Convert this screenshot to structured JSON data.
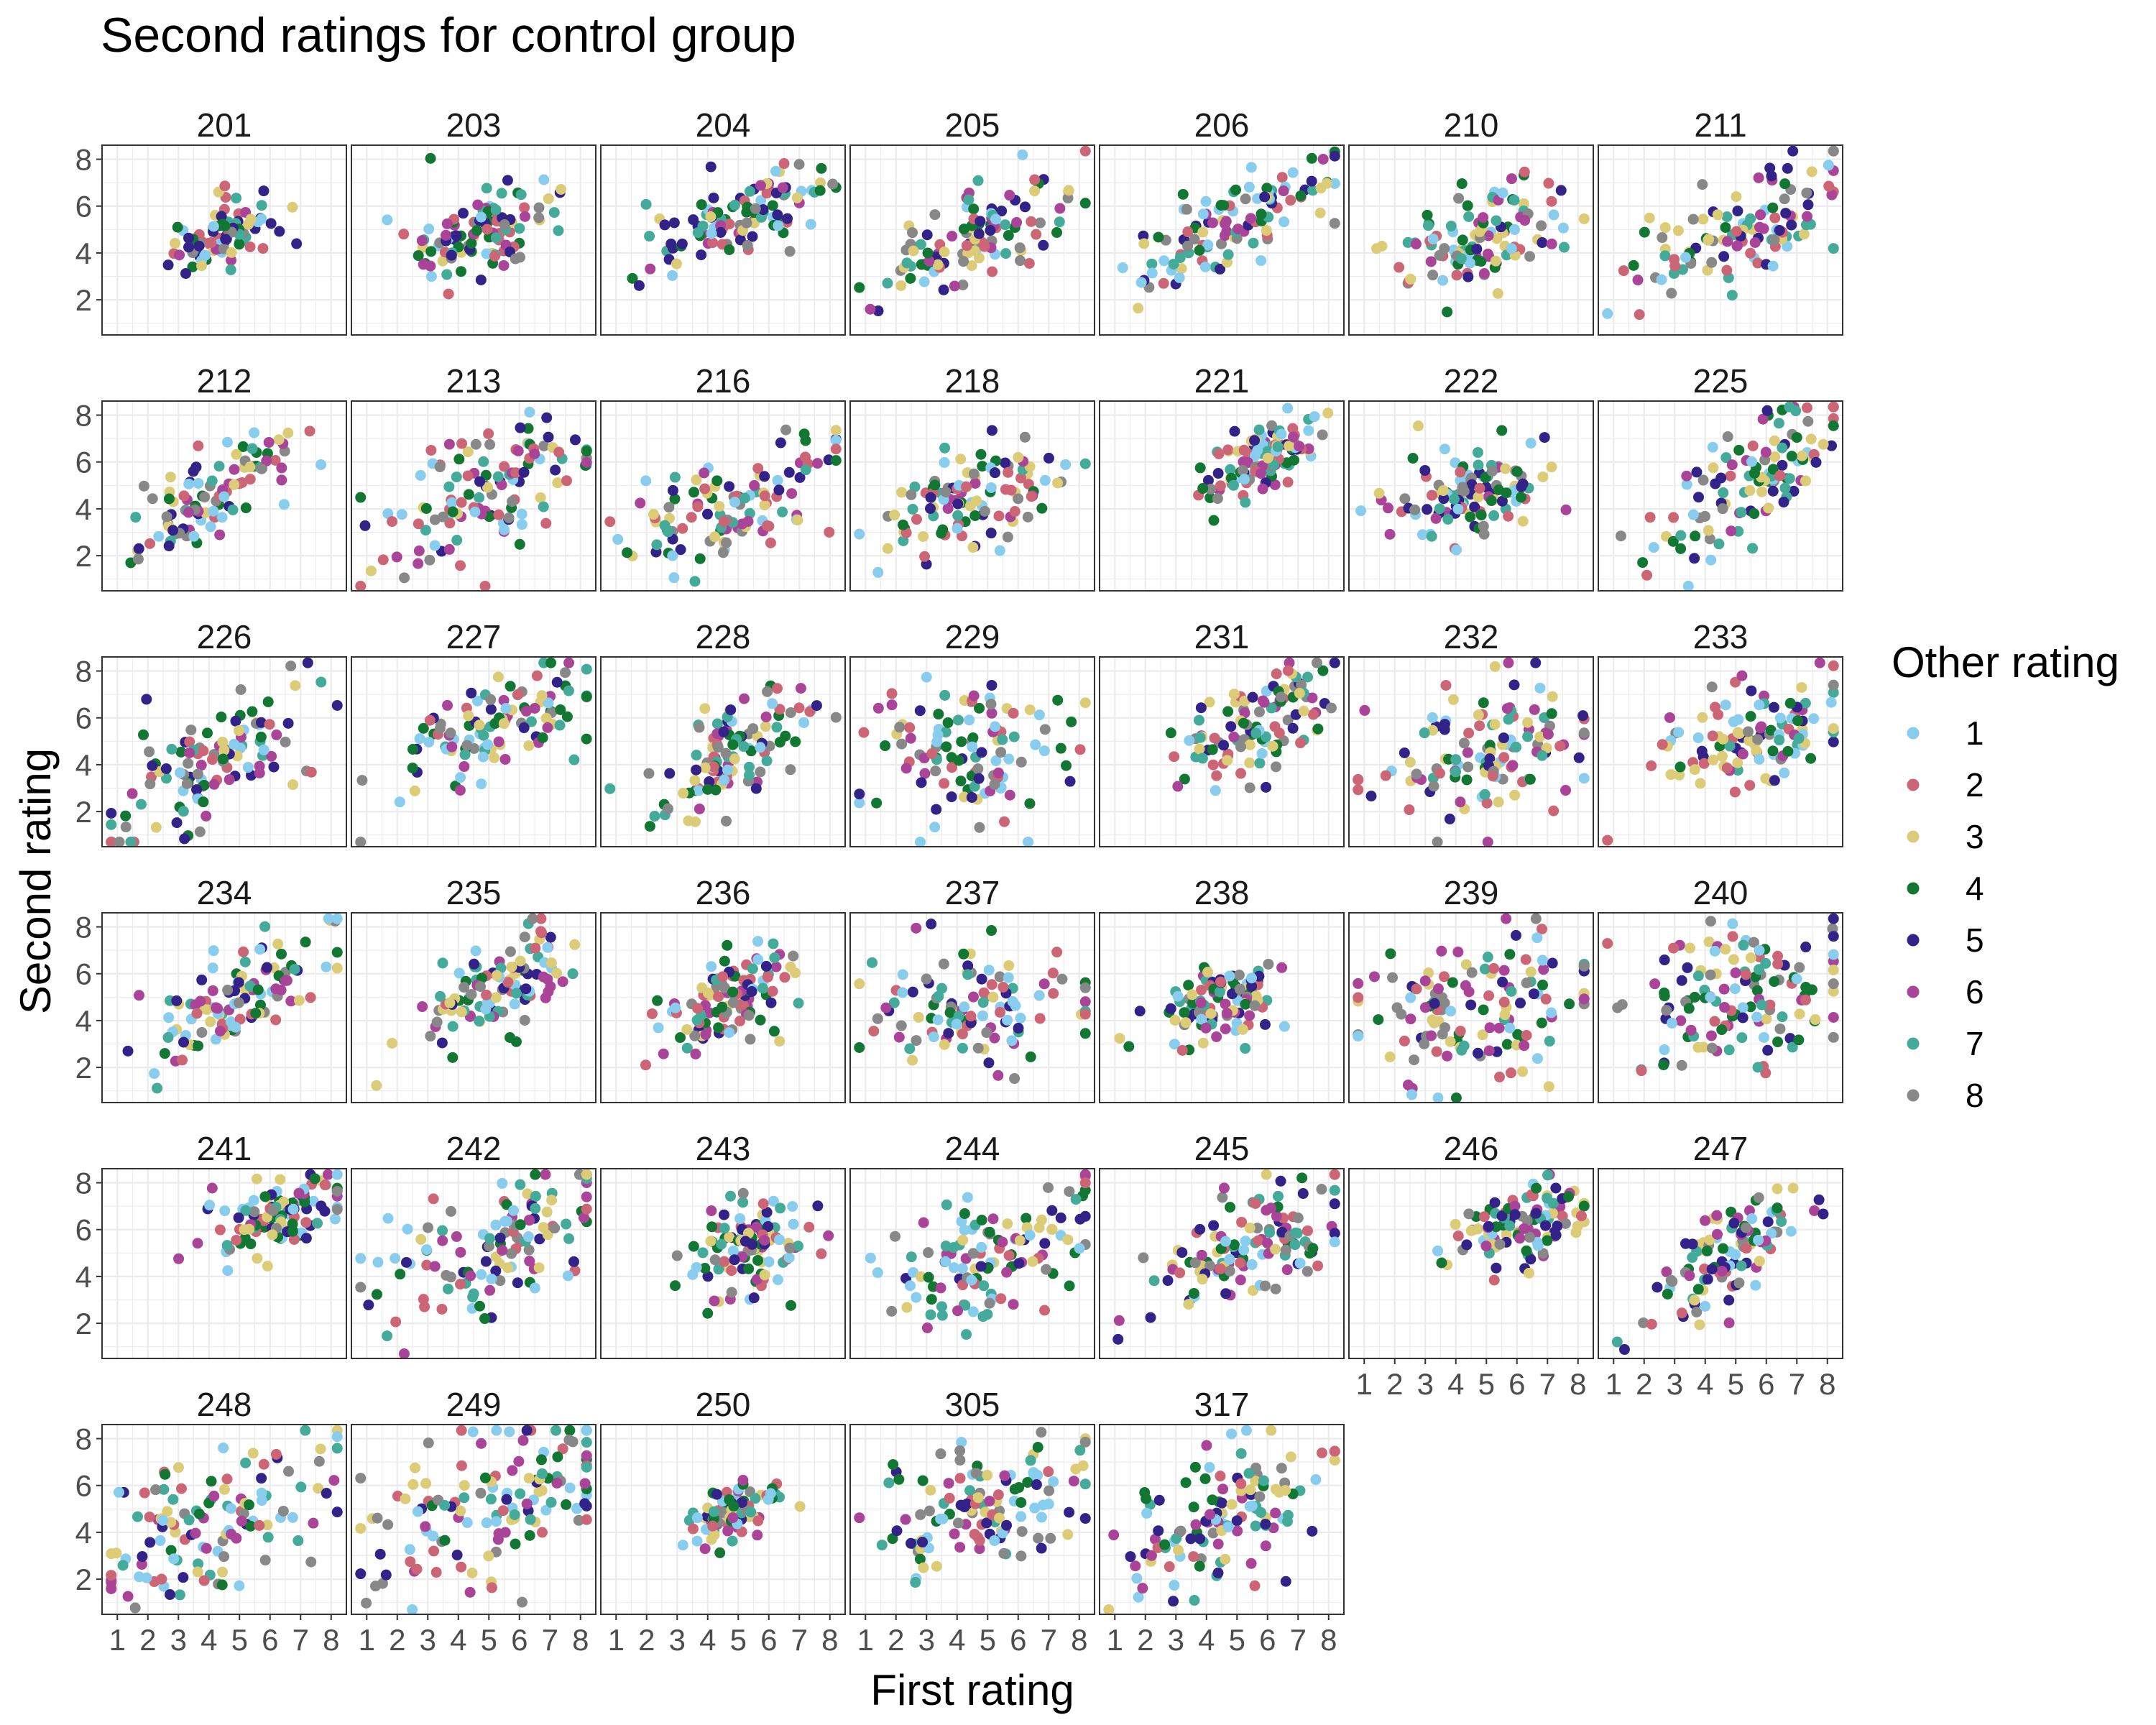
{
  "chart_data": {
    "type": "scatter",
    "title": "Second ratings for control group",
    "xlabel": "First rating",
    "ylabel": "Second rating",
    "xlim": [
      0.5,
      8.5
    ],
    "ylim": [
      0.5,
      8.6
    ],
    "x_ticks": [
      1,
      2,
      3,
      4,
      5,
      6,
      7,
      8
    ],
    "y_ticks": [
      2,
      4,
      6,
      8
    ],
    "grid": true,
    "facet_layout": {
      "columns": 7,
      "rows": 6
    },
    "facets": [
      "201",
      "203",
      "204",
      "205",
      "206",
      "210",
      "211",
      "212",
      "213",
      "216",
      "218",
      "221",
      "222",
      "225",
      "226",
      "227",
      "228",
      "229",
      "231",
      "232",
      "233",
      "234",
      "235",
      "236",
      "237",
      "238",
      "239",
      "240",
      "241",
      "242",
      "243",
      "244",
      "245",
      "246",
      "247",
      "248",
      "249",
      "250",
      "305",
      "317"
    ],
    "legend": {
      "title": "Other rating",
      "position": "right",
      "entries": [
        {
          "label": "1",
          "color": "#88ccee"
        },
        {
          "label": "2",
          "color": "#cc6677"
        },
        {
          "label": "3",
          "color": "#ddcc77"
        },
        {
          "label": "4",
          "color": "#117733"
        },
        {
          "label": "5",
          "color": "#332288"
        },
        {
          "label": "6",
          "color": "#aa4499"
        },
        {
          "label": "7",
          "color": "#44aa99"
        },
        {
          "label": "8",
          "color": "#888888"
        }
      ]
    },
    "facet_points": {
      "201": {
        "cx": 4.5,
        "cy": 4.6,
        "sx": 0.8,
        "sy": 0.9,
        "slope": 0.6,
        "n": 90
      },
      "203": {
        "cx": 4.6,
        "cy": 4.9,
        "sx": 1.2,
        "sy": 1.2,
        "slope": 0.4,
        "n": 110
      },
      "204": {
        "cx": 5.0,
        "cy": 5.5,
        "sx": 1.3,
        "sy": 1.1,
        "slope": 0.5,
        "n": 110
      },
      "205": {
        "cx": 4.6,
        "cy": 4.6,
        "sx": 1.6,
        "sy": 1.2,
        "slope": 0.6,
        "n": 110
      },
      "206": {
        "cx": 5.0,
        "cy": 5.2,
        "sx": 1.8,
        "sy": 1.2,
        "slope": 0.6,
        "n": 110
      },
      "210": {
        "cx": 4.8,
        "cy": 4.7,
        "sx": 1.6,
        "sy": 1.3,
        "slope": 0.4,
        "n": 110
      },
      "211": {
        "cx": 5.0,
        "cy": 4.9,
        "sx": 1.8,
        "sy": 1.5,
        "slope": 0.5,
        "n": 110
      },
      "212": {
        "cx": 4.0,
        "cy": 4.6,
        "sx": 1.4,
        "sy": 1.2,
        "slope": 0.8,
        "n": 100
      },
      "213": {
        "cx": 4.5,
        "cy": 4.6,
        "sx": 2.0,
        "sy": 1.6,
        "slope": 0.4,
        "n": 120
      },
      "216": {
        "cx": 4.5,
        "cy": 3.9,
        "sx": 1.9,
        "sy": 1.6,
        "slope": 0.5,
        "n": 110
      },
      "218": {
        "cx": 4.6,
        "cy": 4.5,
        "sx": 1.6,
        "sy": 1.4,
        "slope": 0.3,
        "n": 110
      },
      "221": {
        "cx": 6.0,
        "cy": 6.3,
        "sx": 1.0,
        "sy": 0.9,
        "slope": 0.6,
        "n": 110
      },
      "222": {
        "cx": 4.5,
        "cy": 4.6,
        "sx": 1.1,
        "sy": 1.3,
        "slope": 0.3,
        "n": 110
      },
      "225": {
        "cx": 5.5,
        "cy": 5.2,
        "sx": 1.6,
        "sy": 1.5,
        "slope": 0.8,
        "n": 110
      },
      "226": {
        "cx": 4.0,
        "cy": 4.2,
        "sx": 1.8,
        "sy": 1.6,
        "slope": 0.7,
        "n": 110
      },
      "227": {
        "cx": 5.2,
        "cy": 5.6,
        "sx": 1.6,
        "sy": 1.2,
        "slope": 0.5,
        "n": 110
      },
      "228": {
        "cx": 4.8,
        "cy": 4.6,
        "sx": 1.4,
        "sy": 1.4,
        "slope": 0.7,
        "n": 110
      },
      "229": {
        "cx": 4.5,
        "cy": 4.7,
        "sx": 1.8,
        "sy": 1.8,
        "slope": 0.1,
        "n": 110
      },
      "231": {
        "cx": 5.5,
        "cy": 5.6,
        "sx": 1.5,
        "sy": 1.3,
        "slope": 0.6,
        "n": 110
      },
      "232": {
        "cx": 4.6,
        "cy": 4.6,
        "sx": 1.8,
        "sy": 1.8,
        "slope": 0.3,
        "n": 120
      },
      "233": {
        "cx": 5.4,
        "cy": 5.0,
        "sx": 1.7,
        "sy": 1.3,
        "slope": 0.4,
        "n": 110
      },
      "234": {
        "cx": 4.8,
        "cy": 5.0,
        "sx": 1.5,
        "sy": 1.3,
        "slope": 0.6,
        "n": 110
      },
      "235": {
        "cx": 5.4,
        "cy": 5.6,
        "sx": 1.3,
        "sy": 1.3,
        "slope": 0.6,
        "n": 110
      },
      "236": {
        "cx": 4.6,
        "cy": 4.9,
        "sx": 1.1,
        "sy": 1.2,
        "slope": 0.4,
        "n": 110
      },
      "237": {
        "cx": 4.6,
        "cy": 4.7,
        "sx": 1.8,
        "sy": 1.8,
        "slope": 0.1,
        "n": 110
      },
      "238": {
        "cx": 4.5,
        "cy": 4.8,
        "sx": 1.0,
        "sy": 1.0,
        "slope": 0.3,
        "n": 110
      },
      "239": {
        "cx": 5.0,
        "cy": 4.8,
        "sx": 2.0,
        "sy": 2.0,
        "slope": 0.3,
        "n": 130
      },
      "240": {
        "cx": 5.0,
        "cy": 5.0,
        "sx": 2.0,
        "sy": 1.9,
        "slope": 0.2,
        "n": 130
      },
      "241": {
        "cx": 6.2,
        "cy": 6.6,
        "sx": 1.2,
        "sy": 1.0,
        "slope": 0.4,
        "n": 110
      },
      "242": {
        "cx": 5.2,
        "cy": 5.2,
        "sx": 2.0,
        "sy": 1.8,
        "slope": 0.5,
        "n": 120
      },
      "243": {
        "cx": 5.2,
        "cy": 5.3,
        "sx": 1.0,
        "sy": 1.3,
        "slope": 0.3,
        "n": 110
      },
      "244": {
        "cx": 5.2,
        "cy": 5.0,
        "sx": 1.8,
        "sy": 1.6,
        "slope": 0.6,
        "n": 120
      },
      "245": {
        "cx": 5.6,
        "cy": 5.5,
        "sx": 1.8,
        "sy": 1.5,
        "slope": 0.5,
        "n": 120
      },
      "246": {
        "cx": 6.3,
        "cy": 6.2,
        "sx": 1.1,
        "sy": 1.1,
        "slope": 0.3,
        "n": 110
      },
      "247": {
        "cx": 4.8,
        "cy": 5.0,
        "sx": 1.3,
        "sy": 1.5,
        "slope": 0.8,
        "n": 110
      },
      "248": {
        "cx": 4.2,
        "cy": 4.2,
        "sx": 2.0,
        "sy": 1.9,
        "slope": 0.4,
        "n": 120
      },
      "249": {
        "cx": 5.0,
        "cy": 5.0,
        "sx": 2.2,
        "sy": 2.1,
        "slope": 0.4,
        "n": 130
      },
      "250": {
        "cx": 4.9,
        "cy": 4.9,
        "sx": 0.7,
        "sy": 0.8,
        "slope": 0.5,
        "n": 90
      },
      "305": {
        "cx": 4.7,
        "cy": 4.8,
        "sx": 2.0,
        "sy": 1.7,
        "slope": 0.3,
        "n": 120
      },
      "317": {
        "cx": 4.8,
        "cy": 4.7,
        "sx": 1.9,
        "sy": 1.6,
        "slope": 0.6,
        "n": 120
      }
    }
  }
}
